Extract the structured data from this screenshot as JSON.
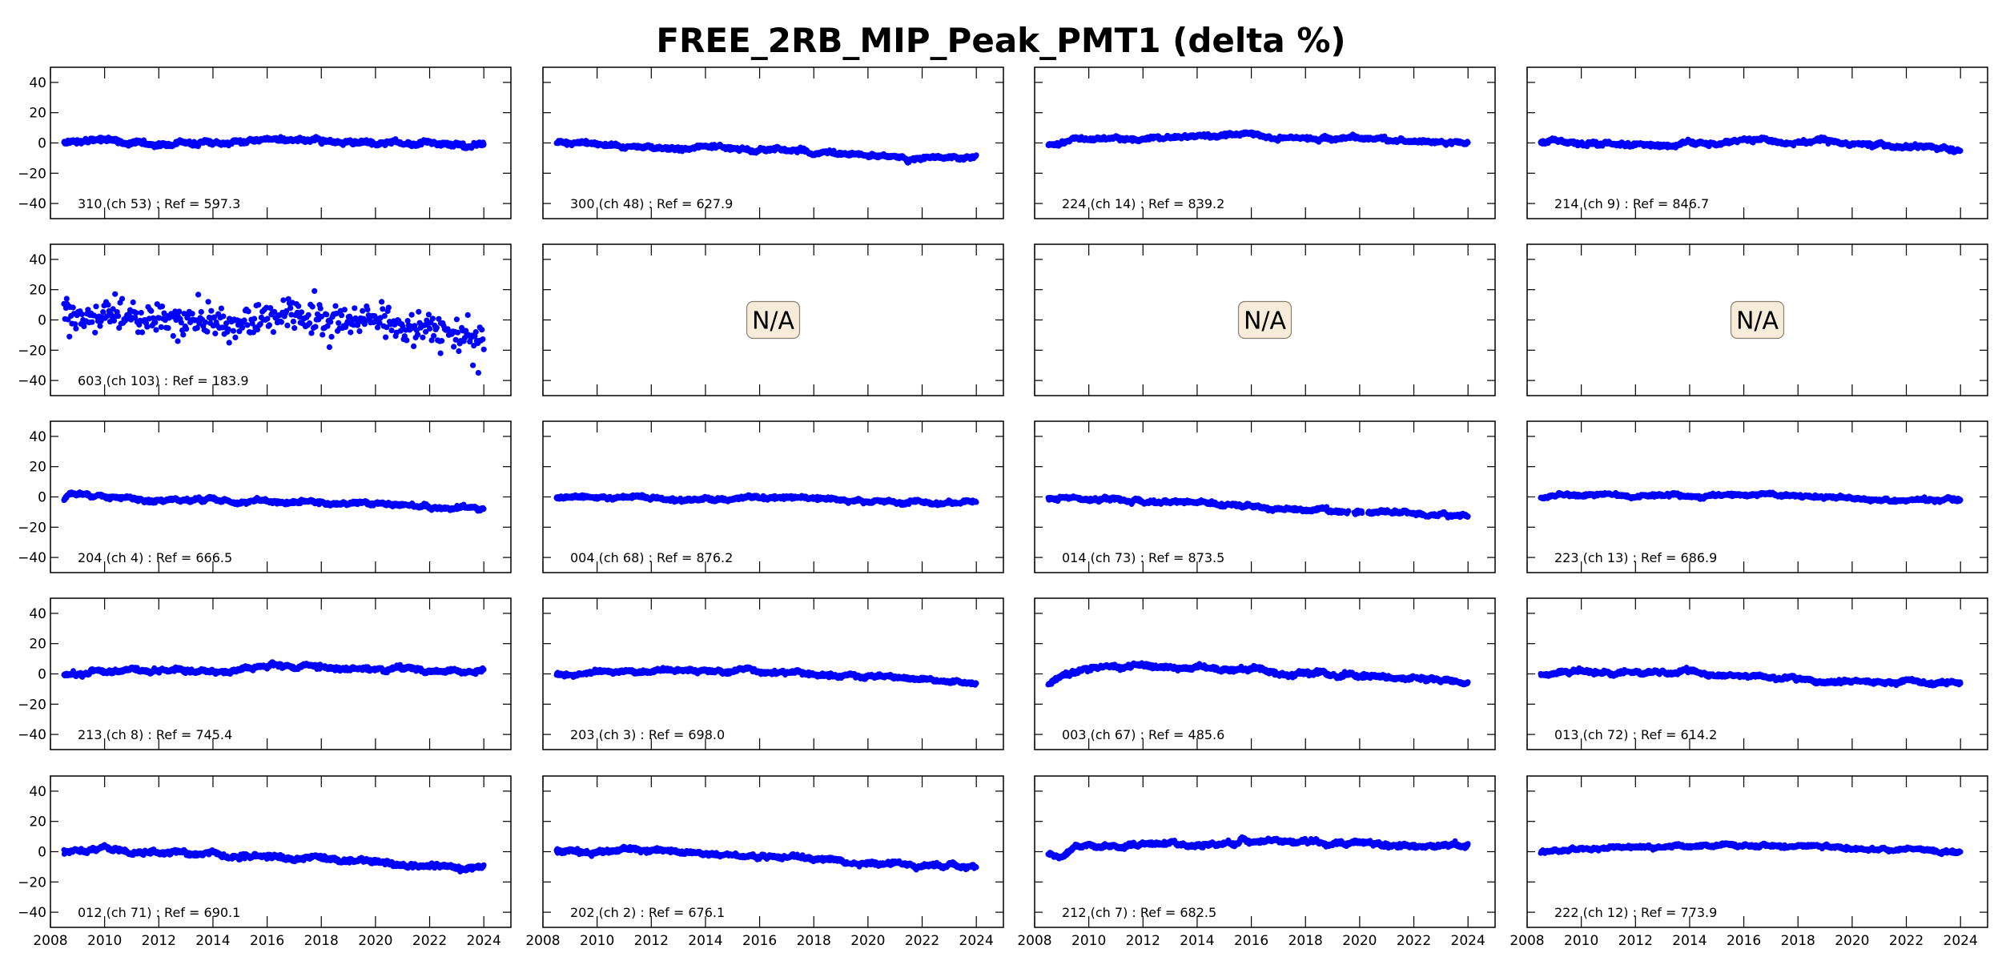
{
  "figure": {
    "title": "FREE_2RB_MIP_Peak_PMT1 (delta %)"
  },
  "chart_data": {
    "type": "scatter",
    "title": "FREE_2RB_MIP_Peak_PMT1 (delta %)",
    "layout": "5 rows x 4 columns grid of panels",
    "shared_xlim": [
      2008,
      2025
    ],
    "shared_ylim": [
      -50,
      50
    ],
    "xticks": [
      2008,
      2010,
      2012,
      2014,
      2016,
      2018,
      2020,
      2022,
      2024
    ],
    "yticks": [
      40,
      20,
      0,
      -20,
      -40
    ],
    "xlabel": "",
    "ylabel": "",
    "grid": false,
    "marker_color": "#0000ff",
    "na_label": "N/A",
    "na_box_color": "#f7ecd9",
    "note": "Each series is given as trend knots [year, delta %] plus typical noise amplitude; points span ~2008.5 to 2024.0.",
    "panels": [
      {
        "label": "310 (ch 53) : Ref = 597.3",
        "available": true,
        "noise": 1.2,
        "trend": [
          [
            2008.5,
            0.5
          ],
          [
            2010,
            1.5
          ],
          [
            2012,
            -0.5
          ],
          [
            2015,
            0
          ],
          [
            2016,
            3
          ],
          [
            2018,
            2
          ],
          [
            2020,
            0
          ],
          [
            2022,
            0
          ],
          [
            2024,
            -1.5
          ]
        ]
      },
      {
        "label": "300 (ch 48) : Ref = 627.9",
        "available": true,
        "noise": 1.0,
        "trend": [
          [
            2008.5,
            0
          ],
          [
            2009.5,
            0.5
          ],
          [
            2011,
            -3
          ],
          [
            2014,
            -4
          ],
          [
            2016,
            -5
          ],
          [
            2018,
            -6
          ],
          [
            2020,
            -7.5
          ],
          [
            2022,
            -10
          ],
          [
            2024,
            -10.5
          ]
        ]
      },
      {
        "label": "224 (ch 14) : Ref = 839.2",
        "available": true,
        "noise": 1.0,
        "trend": [
          [
            2008.5,
            -1
          ],
          [
            2009.5,
            2.5
          ],
          [
            2012,
            3
          ],
          [
            2016,
            4.5
          ],
          [
            2018,
            3.5
          ],
          [
            2020,
            2.5
          ],
          [
            2022,
            1
          ],
          [
            2024,
            1
          ]
        ]
      },
      {
        "label": "214 (ch 9) : Ref = 846.7",
        "available": true,
        "noise": 1.1,
        "trend": [
          [
            2008.5,
            0
          ],
          [
            2010,
            0
          ],
          [
            2012,
            -1
          ],
          [
            2015,
            -1
          ],
          [
            2016,
            1
          ],
          [
            2018,
            0
          ],
          [
            2020,
            -1
          ],
          [
            2022,
            -2
          ],
          [
            2024,
            -3.5
          ]
        ]
      },
      {
        "label": "603 (ch 103) : Ref = 183.9",
        "available": true,
        "noise": 5.5,
        "sparse": true,
        "trend": [
          [
            2008.5,
            5
          ],
          [
            2010,
            3
          ],
          [
            2012,
            2
          ],
          [
            2013,
            0
          ],
          [
            2014,
            -2
          ],
          [
            2015,
            -3
          ],
          [
            2016,
            2
          ],
          [
            2017,
            4
          ],
          [
            2018,
            1
          ],
          [
            2020,
            -1
          ],
          [
            2022,
            -6
          ],
          [
            2024,
            -10
          ]
        ],
        "outliers": [
          [
            2008.6,
            14
          ],
          [
            2008.7,
            -11
          ],
          [
            2012.7,
            -14
          ],
          [
            2014.6,
            -15
          ],
          [
            2018.3,
            -18
          ],
          [
            2022.4,
            -22
          ],
          [
            2023.6,
            -30
          ],
          [
            2023.8,
            -35
          ]
        ]
      },
      {
        "label": "",
        "available": false,
        "noise": 0,
        "trend": []
      },
      {
        "label": "",
        "available": false,
        "noise": 0,
        "trend": []
      },
      {
        "label": "",
        "available": false,
        "noise": 0,
        "trend": []
      },
      {
        "label": "204 (ch 4) : Ref = 666.5",
        "available": true,
        "noise": 1.0,
        "trend": [
          [
            2008.5,
            -2
          ],
          [
            2008.7,
            2.5
          ],
          [
            2009.5,
            0
          ],
          [
            2012,
            -1.5
          ],
          [
            2016,
            -3
          ],
          [
            2018,
            -3.5
          ],
          [
            2020,
            -5
          ],
          [
            2022,
            -6
          ],
          [
            2024,
            -7.5
          ]
        ]
      },
      {
        "label": "004 (ch 68) : Ref = 876.2",
        "available": true,
        "noise": 0.9,
        "trend": [
          [
            2008.5,
            -1
          ],
          [
            2009.5,
            0.5
          ],
          [
            2012,
            -1
          ],
          [
            2014,
            -1.5
          ],
          [
            2016,
            -0.5
          ],
          [
            2018,
            -1
          ],
          [
            2020,
            -3
          ],
          [
            2022,
            -3.5
          ],
          [
            2024,
            -4
          ]
        ]
      },
      {
        "label": "014 (ch 73) : Ref = 873.5",
        "available": true,
        "noise": 1.0,
        "trend": [
          [
            2008.5,
            -1
          ],
          [
            2010,
            -0.5
          ],
          [
            2012,
            -3
          ],
          [
            2014,
            -4
          ],
          [
            2016,
            -6
          ],
          [
            2018,
            -8
          ],
          [
            2019.5,
            -9
          ],
          [
            2020,
            -10
          ],
          [
            2022,
            -11
          ],
          [
            2024,
            -12
          ]
        ],
        "gaps": [
          [
            2019.6,
            2019.8
          ],
          [
            2020.1,
            2020.3
          ]
        ]
      },
      {
        "label": "223 (ch 13) : Ref = 686.9",
        "available": true,
        "noise": 0.9,
        "trend": [
          [
            2008.5,
            -1
          ],
          [
            2009.5,
            1.5
          ],
          [
            2010.5,
            2
          ],
          [
            2014,
            1
          ],
          [
            2018,
            1
          ],
          [
            2020,
            -0.5
          ],
          [
            2022,
            -2
          ],
          [
            2024,
            -2.5
          ]
        ]
      },
      {
        "label": "213 (ch 8) : Ref = 745.4",
        "available": true,
        "noise": 1.1,
        "trend": [
          [
            2008.5,
            0
          ],
          [
            2009.5,
            2
          ],
          [
            2012,
            2
          ],
          [
            2015,
            2
          ],
          [
            2015.8,
            5
          ],
          [
            2018,
            4
          ],
          [
            2020,
            3
          ],
          [
            2022,
            2
          ],
          [
            2024,
            2
          ]
        ]
      },
      {
        "label": "203 (ch 3) : Ref = 698.0",
        "available": true,
        "noise": 1.0,
        "trend": [
          [
            2008.5,
            0
          ],
          [
            2010,
            1
          ],
          [
            2014,
            2
          ],
          [
            2016,
            1
          ],
          [
            2018,
            0
          ],
          [
            2020,
            -1.5
          ],
          [
            2022,
            -3.5
          ],
          [
            2024,
            -5
          ]
        ]
      },
      {
        "label": "003 (ch 67) : Ref = 485.6",
        "available": true,
        "noise": 1.2,
        "trend": [
          [
            2008.5,
            -7
          ],
          [
            2009,
            -1
          ],
          [
            2010,
            3
          ],
          [
            2011,
            5
          ],
          [
            2013,
            5
          ],
          [
            2015,
            3.5
          ],
          [
            2017,
            2
          ],
          [
            2019,
            0
          ],
          [
            2021,
            -2
          ],
          [
            2024,
            -5
          ]
        ]
      },
      {
        "label": "013 (ch 72) : Ref = 614.2",
        "available": true,
        "noise": 1.1,
        "trend": [
          [
            2008.5,
            0
          ],
          [
            2010,
            1.5
          ],
          [
            2012,
            1
          ],
          [
            2014,
            1
          ],
          [
            2015,
            -1
          ],
          [
            2018,
            -3
          ],
          [
            2020,
            -4
          ],
          [
            2022,
            -5
          ],
          [
            2024,
            -6
          ]
        ]
      },
      {
        "label": "012 (ch 71) : Ref = 690.1",
        "available": true,
        "noise": 1.2,
        "trend": [
          [
            2008.5,
            0
          ],
          [
            2010,
            1
          ],
          [
            2012,
            -0.5
          ],
          [
            2014,
            -2
          ],
          [
            2016,
            -4
          ],
          [
            2018,
            -5
          ],
          [
            2020,
            -7.5
          ],
          [
            2022,
            -9.5
          ],
          [
            2024,
            -10.5
          ]
        ]
      },
      {
        "label": "202 (ch 2) : Ref = 676.1",
        "available": true,
        "noise": 1.1,
        "trend": [
          [
            2008.5,
            0.5
          ],
          [
            2010,
            0.5
          ],
          [
            2012,
            -0.5
          ],
          [
            2014,
            -1.5
          ],
          [
            2016,
            -3
          ],
          [
            2018,
            -4
          ],
          [
            2020,
            -7
          ],
          [
            2022,
            -8.5
          ],
          [
            2024,
            -9.5
          ]
        ]
      },
      {
        "label": "212 (ch 7) : Ref = 682.5",
        "available": true,
        "noise": 1.1,
        "trend": [
          [
            2008.5,
            -1
          ],
          [
            2008.9,
            -2
          ],
          [
            2009.5,
            3
          ],
          [
            2012,
            4.5
          ],
          [
            2015.5,
            5
          ],
          [
            2015.6,
            7
          ],
          [
            2018,
            7
          ],
          [
            2020,
            5
          ],
          [
            2022,
            4
          ],
          [
            2024,
            4
          ]
        ]
      },
      {
        "label": "222 (ch 12) : Ref = 773.9",
        "available": true,
        "noise": 0.9,
        "trend": [
          [
            2008.5,
            -1
          ],
          [
            2009.5,
            2
          ],
          [
            2012,
            3
          ],
          [
            2016,
            4
          ],
          [
            2018,
            3.5
          ],
          [
            2020,
            2
          ],
          [
            2022,
            1
          ],
          [
            2024,
            0.5
          ]
        ]
      }
    ]
  }
}
